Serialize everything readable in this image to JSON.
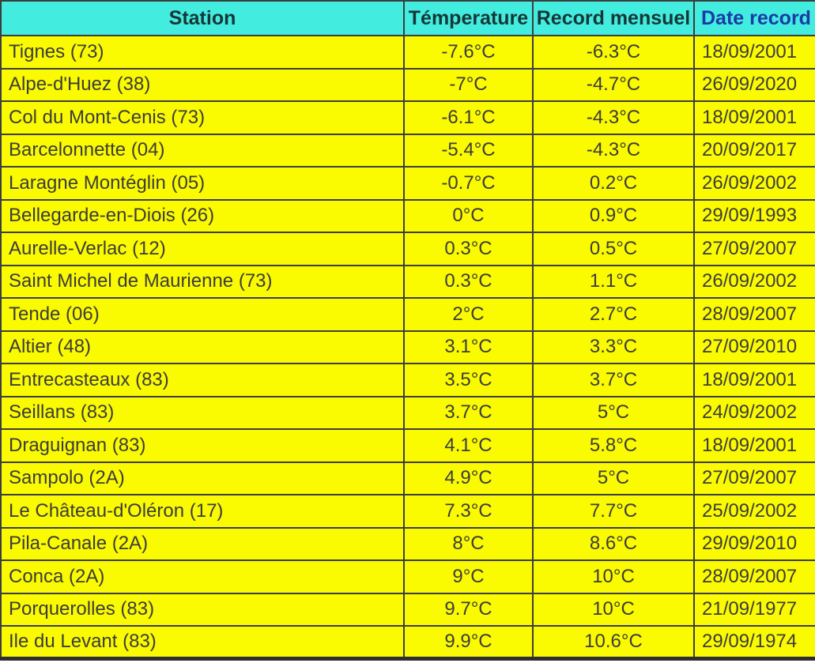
{
  "chart_data": {
    "type": "table",
    "columns": [
      "Station",
      "Témperature",
      "Record mensuel",
      "Date record"
    ],
    "rows": [
      [
        "Tignes (73)",
        "-7.6°C",
        "-6.3°C",
        "18/09/2001"
      ],
      [
        "Alpe-d'Huez (38)",
        "-7°C",
        "-4.7°C",
        "26/09/2020"
      ],
      [
        "Col du Mont-Cenis (73)",
        "-6.1°C",
        "-4.3°C",
        "18/09/2001"
      ],
      [
        "Barcelonnette (04)",
        "-5.4°C",
        "-4.3°C",
        "20/09/2017"
      ],
      [
        "Laragne Montéglin (05)",
        "-0.7°C",
        "0.2°C",
        "26/09/2002"
      ],
      [
        "Bellegarde-en-Diois (26)",
        "0°C",
        "0.9°C",
        "29/09/1993"
      ],
      [
        "Aurelle-Verlac (12)",
        "0.3°C",
        "0.5°C",
        "27/09/2007"
      ],
      [
        "Saint Michel de Maurienne (73)",
        "0.3°C",
        "1.1°C",
        "26/09/2002"
      ],
      [
        "Tende (06)",
        "2°C",
        "2.7°C",
        "28/09/2007"
      ],
      [
        "Altier (48)",
        "3.1°C",
        "3.3°C",
        "27/09/2010"
      ],
      [
        "Entrecasteaux (83)",
        "3.5°C",
        "3.7°C",
        "18/09/2001"
      ],
      [
        "Seillans (83)",
        "3.7°C",
        "5°C",
        "24/09/2002"
      ],
      [
        "Draguignan (83)",
        "4.1°C",
        "5.8°C",
        "18/09/2001"
      ],
      [
        "Sampolo (2A)",
        "4.9°C",
        "5°C",
        "27/09/2007"
      ],
      [
        "Le Château-d'Oléron (17)",
        "7.3°C",
        "7.7°C",
        "25/09/2002"
      ],
      [
        "Pila-Canale (2A)",
        "8°C",
        "8.6°C",
        "29/09/2010"
      ],
      [
        "Conca (2A)",
        "9°C",
        "10°C",
        "28/09/2007"
      ],
      [
        "Porquerolles (83)",
        "9.7°C",
        "10°C",
        "21/09/1977"
      ],
      [
        "Ile du Levant (83)",
        "9.9°C",
        "10.6°C",
        "29/09/1974"
      ]
    ],
    "layout": {
      "header_row": true,
      "grid": true
    }
  },
  "colors": {
    "header_background": "#42ecdf",
    "row_background": "#fafa00",
    "header_text": "#173636",
    "date_header_text": "#1a3aa6",
    "cell_text": "#3c3c3c",
    "border": "#3d3d3d"
  }
}
